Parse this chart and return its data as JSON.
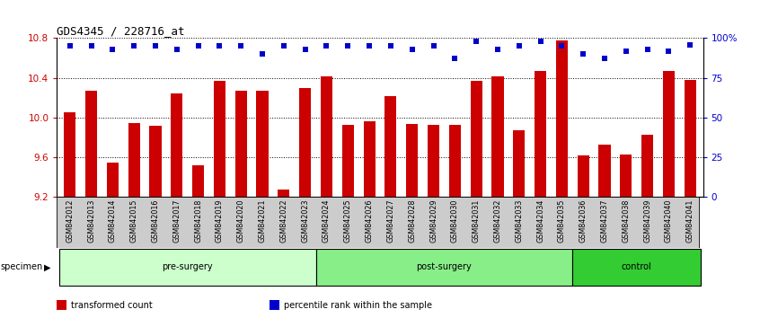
{
  "title": "GDS4345 / 228716_at",
  "categories": [
    "GSM842012",
    "GSM842013",
    "GSM842014",
    "GSM842015",
    "GSM842016",
    "GSM842017",
    "GSM842018",
    "GSM842019",
    "GSM842020",
    "GSM842021",
    "GSM842022",
    "GSM842023",
    "GSM842024",
    "GSM842025",
    "GSM842026",
    "GSM842027",
    "GSM842028",
    "GSM842029",
    "GSM842030",
    "GSM842031",
    "GSM842032",
    "GSM842033",
    "GSM842034",
    "GSM842035",
    "GSM842036",
    "GSM842037",
    "GSM842038",
    "GSM842039",
    "GSM842040",
    "GSM842041"
  ],
  "bar_values": [
    10.05,
    10.27,
    9.55,
    9.95,
    9.92,
    10.24,
    9.52,
    10.37,
    10.27,
    10.27,
    9.28,
    10.3,
    10.42,
    9.93,
    9.96,
    10.22,
    9.94,
    9.93,
    9.93,
    10.37,
    10.42,
    9.87,
    10.47,
    10.78,
    9.62,
    9.73,
    9.63,
    9.83,
    10.47,
    10.38
  ],
  "percentile_values": [
    95,
    95,
    93,
    95,
    95,
    93,
    95,
    95,
    95,
    90,
    95,
    93,
    95,
    95,
    95,
    95,
    93,
    95,
    87,
    98,
    93,
    95,
    98,
    95,
    90,
    87,
    92,
    93,
    92,
    96
  ],
  "bar_color": "#cc0000",
  "dot_color": "#0000cc",
  "bar_baseline": 9.2,
  "ylim_left": [
    9.2,
    10.8
  ],
  "ylim_right": [
    0,
    100
  ],
  "yticks_left": [
    9.2,
    9.6,
    10.0,
    10.4,
    10.8
  ],
  "yticks_right": [
    0,
    25,
    50,
    75,
    100
  ],
  "ytick_labels_right": [
    "0",
    "25",
    "50",
    "75",
    "100%"
  ],
  "groups": [
    {
      "label": "pre-surgery",
      "start": 0,
      "end": 12,
      "color": "#ccffcc"
    },
    {
      "label": "post-surgery",
      "start": 12,
      "end": 24,
      "color": "#88ee88"
    },
    {
      "label": "control",
      "start": 24,
      "end": 30,
      "color": "#33cc33"
    }
  ],
  "specimen_label": "specimen",
  "legend_items": [
    {
      "label": "transformed count",
      "color": "#cc0000"
    },
    {
      "label": "percentile rank within the sample",
      "color": "#0000cc"
    }
  ],
  "bar_width": 0.55,
  "ylabel_left_color": "#cc0000",
  "ylabel_right_color": "#0000cc",
  "label_bg_color": "#cccccc",
  "title_fontsize": 9,
  "tick_fontsize": 7.5,
  "label_fontsize": 5.8,
  "group_fontsize": 7,
  "legend_fontsize": 7
}
